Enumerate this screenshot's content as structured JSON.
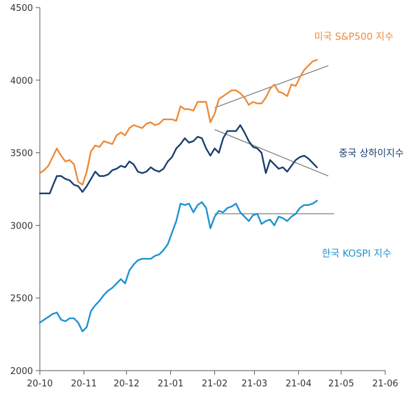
{
  "chart_data": {
    "type": "line",
    "title": "",
    "xlabel": "",
    "ylabel": "",
    "ylim": [
      2000,
      4500
    ],
    "yticks": [
      2000,
      2500,
      3000,
      3500,
      4000,
      4500
    ],
    "xlim": [
      "2020-10-01",
      "2021-06-01"
    ],
    "xticks": [
      {
        "label": "20-10",
        "date": "2020-10-01"
      },
      {
        "label": "20-11",
        "date": "2020-11-01"
      },
      {
        "label": "20-12",
        "date": "2020-12-01"
      },
      {
        "label": "21-01",
        "date": "2021-01-01"
      },
      {
        "label": "21-02",
        "date": "2021-02-01"
      },
      {
        "label": "21-03",
        "date": "2021-03-01"
      },
      {
        "label": "21-04",
        "date": "2021-04-01"
      },
      {
        "label": "21-05",
        "date": "2021-05-01"
      },
      {
        "label": "21-06",
        "date": "2021-06-01"
      }
    ],
    "grid": false,
    "series": [
      {
        "name": "미국 S&P500 지수",
        "color": "#ED8B3A",
        "points": [
          [
            "2020-10-01",
            3360
          ],
          [
            "2020-10-04",
            3380
          ],
          [
            "2020-10-07",
            3410
          ],
          [
            "2020-10-10",
            3470
          ],
          [
            "2020-10-13",
            3530
          ],
          [
            "2020-10-16",
            3480
          ],
          [
            "2020-10-19",
            3440
          ],
          [
            "2020-10-22",
            3450
          ],
          [
            "2020-10-25",
            3420
          ],
          [
            "2020-10-28",
            3300
          ],
          [
            "2020-10-31",
            3280
          ],
          [
            "2020-11-03",
            3370
          ],
          [
            "2020-11-06",
            3510
          ],
          [
            "2020-11-09",
            3550
          ],
          [
            "2020-11-12",
            3540
          ],
          [
            "2020-11-15",
            3580
          ],
          [
            "2020-11-18",
            3570
          ],
          [
            "2020-11-21",
            3560
          ],
          [
            "2020-11-24",
            3620
          ],
          [
            "2020-11-27",
            3640
          ],
          [
            "2020-11-30",
            3620
          ],
          [
            "2020-12-03",
            3670
          ],
          [
            "2020-12-06",
            3690
          ],
          [
            "2020-12-09",
            3680
          ],
          [
            "2020-12-12",
            3670
          ],
          [
            "2020-12-15",
            3700
          ],
          [
            "2020-12-18",
            3710
          ],
          [
            "2020-12-21",
            3690
          ],
          [
            "2020-12-24",
            3700
          ],
          [
            "2020-12-27",
            3730
          ],
          [
            "2020-12-30",
            3730
          ],
          [
            "2021-01-02",
            3730
          ],
          [
            "2021-01-05",
            3720
          ],
          [
            "2021-01-08",
            3820
          ],
          [
            "2021-01-11",
            3800
          ],
          [
            "2021-01-14",
            3800
          ],
          [
            "2021-01-17",
            3790
          ],
          [
            "2021-01-20",
            3850
          ],
          [
            "2021-01-23",
            3850
          ],
          [
            "2021-01-26",
            3850
          ],
          [
            "2021-01-29",
            3710
          ],
          [
            "2021-02-01",
            3770
          ],
          [
            "2021-02-04",
            3870
          ],
          [
            "2021-02-07",
            3890
          ],
          [
            "2021-02-10",
            3910
          ],
          [
            "2021-02-13",
            3930
          ],
          [
            "2021-02-16",
            3930
          ],
          [
            "2021-02-19",
            3910
          ],
          [
            "2021-02-22",
            3880
          ],
          [
            "2021-02-25",
            3830
          ],
          [
            "2021-02-28",
            3850
          ],
          [
            "2021-03-03",
            3840
          ],
          [
            "2021-03-06",
            3840
          ],
          [
            "2021-03-09",
            3880
          ],
          [
            "2021-03-12",
            3940
          ],
          [
            "2021-03-15",
            3970
          ],
          [
            "2021-03-18",
            3920
          ],
          [
            "2021-03-21",
            3910
          ],
          [
            "2021-03-24",
            3890
          ],
          [
            "2021-03-27",
            3970
          ],
          [
            "2021-03-30",
            3960
          ],
          [
            "2021-04-02",
            4020
          ],
          [
            "2021-04-05",
            4070
          ],
          [
            "2021-04-08",
            4100
          ],
          [
            "2021-04-11",
            4130
          ],
          [
            "2021-04-14",
            4140
          ]
        ]
      },
      {
        "name": "중국 상하이지수",
        "color": "#1B3E6E",
        "points": [
          [
            "2020-10-01",
            3220
          ],
          [
            "2020-10-08",
            3220
          ],
          [
            "2020-10-10",
            3270
          ],
          [
            "2020-10-13",
            3340
          ],
          [
            "2020-10-16",
            3340
          ],
          [
            "2020-10-19",
            3320
          ],
          [
            "2020-10-22",
            3310
          ],
          [
            "2020-10-25",
            3280
          ],
          [
            "2020-10-28",
            3270
          ],
          [
            "2020-10-31",
            3230
          ],
          [
            "2020-11-03",
            3270
          ],
          [
            "2020-11-06",
            3320
          ],
          [
            "2020-11-09",
            3370
          ],
          [
            "2020-11-12",
            3340
          ],
          [
            "2020-11-15",
            3340
          ],
          [
            "2020-11-18",
            3350
          ],
          [
            "2020-11-21",
            3380
          ],
          [
            "2020-11-24",
            3390
          ],
          [
            "2020-11-27",
            3410
          ],
          [
            "2020-11-30",
            3400
          ],
          [
            "2020-12-03",
            3440
          ],
          [
            "2020-12-06",
            3420
          ],
          [
            "2020-12-09",
            3370
          ],
          [
            "2020-12-12",
            3360
          ],
          [
            "2020-12-15",
            3370
          ],
          [
            "2020-12-18",
            3400
          ],
          [
            "2020-12-21",
            3380
          ],
          [
            "2020-12-24",
            3370
          ],
          [
            "2020-12-27",
            3390
          ],
          [
            "2020-12-30",
            3440
          ],
          [
            "2021-01-02",
            3470
          ],
          [
            "2021-01-05",
            3530
          ],
          [
            "2021-01-08",
            3560
          ],
          [
            "2021-01-11",
            3600
          ],
          [
            "2021-01-14",
            3570
          ],
          [
            "2021-01-17",
            3580
          ],
          [
            "2021-01-20",
            3610
          ],
          [
            "2021-01-23",
            3600
          ],
          [
            "2021-01-26",
            3530
          ],
          [
            "2021-01-29",
            3480
          ],
          [
            "2021-02-01",
            3530
          ],
          [
            "2021-02-04",
            3500
          ],
          [
            "2021-02-07",
            3600
          ],
          [
            "2021-02-10",
            3650
          ],
          [
            "2021-02-13",
            3650
          ],
          [
            "2021-02-16",
            3650
          ],
          [
            "2021-02-19",
            3690
          ],
          [
            "2021-02-22",
            3640
          ],
          [
            "2021-02-25",
            3580
          ],
          [
            "2021-02-28",
            3540
          ],
          [
            "2021-03-03",
            3530
          ],
          [
            "2021-03-06",
            3500
          ],
          [
            "2021-03-09",
            3360
          ],
          [
            "2021-03-12",
            3450
          ],
          [
            "2021-03-15",
            3420
          ],
          [
            "2021-03-18",
            3390
          ],
          [
            "2021-03-21",
            3400
          ],
          [
            "2021-03-24",
            3370
          ],
          [
            "2021-03-27",
            3410
          ],
          [
            "2021-03-30",
            3450
          ],
          [
            "2021-04-02",
            3470
          ],
          [
            "2021-04-05",
            3480
          ],
          [
            "2021-04-08",
            3460
          ],
          [
            "2021-04-11",
            3430
          ],
          [
            "2021-04-14",
            3400
          ]
        ]
      },
      {
        "name": "한국 KOSPI 지수",
        "color": "#1E92D0",
        "points": [
          [
            "2020-10-01",
            2330
          ],
          [
            "2020-10-04",
            2350
          ],
          [
            "2020-10-07",
            2370
          ],
          [
            "2020-10-10",
            2390
          ],
          [
            "2020-10-13",
            2400
          ],
          [
            "2020-10-16",
            2350
          ],
          [
            "2020-10-19",
            2340
          ],
          [
            "2020-10-22",
            2360
          ],
          [
            "2020-10-25",
            2360
          ],
          [
            "2020-10-28",
            2330
          ],
          [
            "2020-10-31",
            2270
          ],
          [
            "2020-11-03",
            2300
          ],
          [
            "2020-11-06",
            2410
          ],
          [
            "2020-11-09",
            2450
          ],
          [
            "2020-11-12",
            2480
          ],
          [
            "2020-11-15",
            2520
          ],
          [
            "2020-11-18",
            2550
          ],
          [
            "2020-11-21",
            2570
          ],
          [
            "2020-11-24",
            2600
          ],
          [
            "2020-11-27",
            2630
          ],
          [
            "2020-11-30",
            2600
          ],
          [
            "2020-12-03",
            2690
          ],
          [
            "2020-12-06",
            2730
          ],
          [
            "2020-12-09",
            2760
          ],
          [
            "2020-12-12",
            2770
          ],
          [
            "2020-12-15",
            2770
          ],
          [
            "2020-12-18",
            2770
          ],
          [
            "2020-12-21",
            2790
          ],
          [
            "2020-12-24",
            2800
          ],
          [
            "2020-12-27",
            2830
          ],
          [
            "2020-12-30",
            2870
          ],
          [
            "2021-01-02",
            2950
          ],
          [
            "2021-01-05",
            3030
          ],
          [
            "2021-01-08",
            3150
          ],
          [
            "2021-01-11",
            3140
          ],
          [
            "2021-01-14",
            3150
          ],
          [
            "2021-01-17",
            3090
          ],
          [
            "2021-01-20",
            3140
          ],
          [
            "2021-01-23",
            3160
          ],
          [
            "2021-01-26",
            3120
          ],
          [
            "2021-01-29",
            2980
          ],
          [
            "2021-02-01",
            3060
          ],
          [
            "2021-02-04",
            3100
          ],
          [
            "2021-02-07",
            3090
          ],
          [
            "2021-02-10",
            3120
          ],
          [
            "2021-02-13",
            3130
          ],
          [
            "2021-02-16",
            3150
          ],
          [
            "2021-02-19",
            3090
          ],
          [
            "2021-02-22",
            3060
          ],
          [
            "2021-02-25",
            3030
          ],
          [
            "2021-02-28",
            3070
          ],
          [
            "2021-03-03",
            3080
          ],
          [
            "2021-03-06",
            3010
          ],
          [
            "2021-03-09",
            3030
          ],
          [
            "2021-03-12",
            3040
          ],
          [
            "2021-03-15",
            3000
          ],
          [
            "2021-03-18",
            3060
          ],
          [
            "2021-03-21",
            3050
          ],
          [
            "2021-03-24",
            3030
          ],
          [
            "2021-03-27",
            3060
          ],
          [
            "2021-03-30",
            3080
          ],
          [
            "2021-04-02",
            3120
          ],
          [
            "2021-04-05",
            3140
          ],
          [
            "2021-04-08",
            3140
          ],
          [
            "2021-04-11",
            3150
          ],
          [
            "2021-04-14",
            3170
          ]
        ]
      }
    ],
    "trendlines": [
      {
        "color": "#808080",
        "points": [
          [
            "2021-02-01",
            3810
          ],
          [
            "2021-04-22",
            4100
          ]
        ]
      },
      {
        "color": "#808080",
        "points": [
          [
            "2021-02-01",
            3660
          ],
          [
            "2021-04-22",
            3340
          ]
        ]
      },
      {
        "color": "#808080",
        "points": [
          [
            "2021-02-01",
            3080
          ],
          [
            "2021-04-26",
            3080
          ]
        ]
      }
    ]
  }
}
